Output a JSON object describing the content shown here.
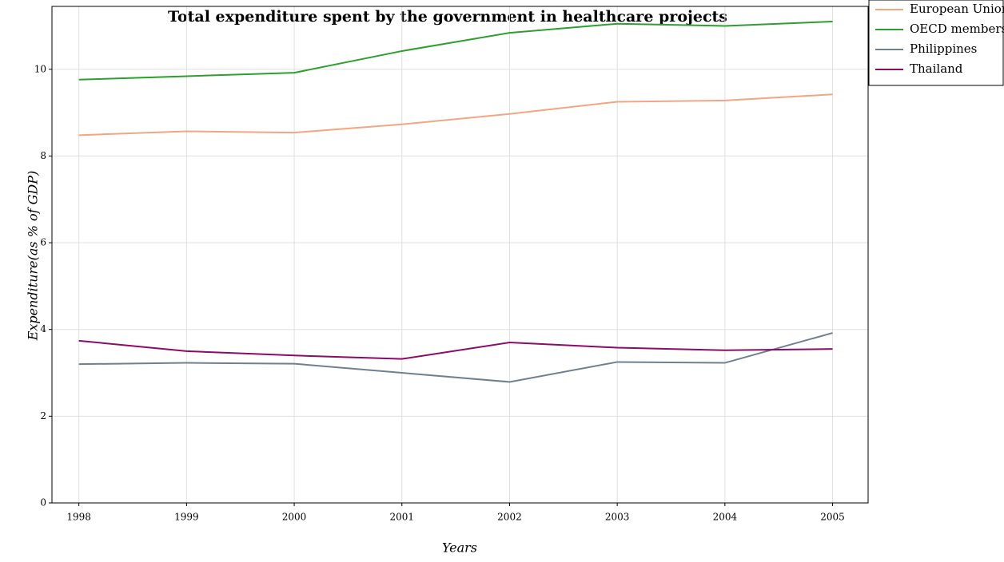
{
  "chart_data": {
    "type": "line",
    "title": "Total expenditure spent by the government in healthcare projects",
    "x_label": "Years",
    "y_label": "Expenditure(as % of GDP)",
    "x": [
      1998,
      1999,
      2000,
      2001,
      2002,
      2003,
      2004,
      2005
    ],
    "xlim": [
      1997.75,
      2005.33
    ],
    "xticks": [
      1998,
      1999,
      2000,
      2001,
      2002,
      2003,
      2004,
      2005
    ],
    "ylim": [
      0,
      11.45
    ],
    "yticks": [
      0,
      2,
      4,
      6,
      8,
      10
    ],
    "grid": true,
    "legend": "upper right",
    "series": [
      {
        "name": "European Union",
        "color": "#f4a582",
        "values": [
          8.48,
          8.57,
          8.54,
          8.73,
          8.97,
          9.25,
          9.28,
          9.42
        ]
      },
      {
        "name": "OECD members",
        "color": "#2ca02c",
        "values": [
          9.76,
          9.84,
          9.92,
          10.42,
          10.84,
          11.05,
          11.0,
          11.1
        ]
      },
      {
        "name": "Philippines",
        "color": "#708090",
        "values": [
          3.2,
          3.23,
          3.21,
          3.0,
          2.79,
          3.25,
          3.23,
          3.92
        ]
      },
      {
        "name": "Thailand",
        "color": "#8b0a6a",
        "values": [
          3.74,
          3.5,
          3.4,
          3.32,
          3.7,
          3.58,
          3.52,
          3.55
        ]
      }
    ]
  }
}
